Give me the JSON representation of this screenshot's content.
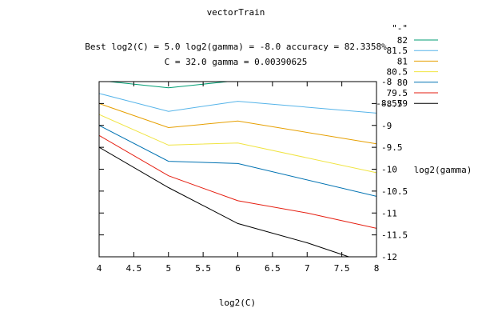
{
  "chart_data": {
    "type": "line",
    "title": "vectorTrain",
    "subtitle_line1": "Best log2(C) = 5.0  log2(gamma) = -8.0  accuracy = 82.3358%",
    "subtitle_line2": "C = 32.0  gamma = 0.00390625",
    "xlabel": "log2(C)",
    "ylabel": "log2(gamma)",
    "xlim": [
      4,
      8
    ],
    "ylim": [
      -12,
      -8
    ],
    "x_ticks": [
      "4",
      "4.5",
      "5",
      "5.5",
      "6",
      "6.5",
      "7",
      "7.5",
      "8"
    ],
    "y_ticks": [
      "-8",
      "-8.5",
      "-9",
      "-9.5",
      "-10",
      "-10.5",
      "-11",
      "-11.5",
      "-12"
    ],
    "legend_title": "\"-\"",
    "legend_position": "top-right",
    "series": [
      {
        "name": "82",
        "color": "#009e73",
        "points": [
          [
            4.15,
            -8.0
          ],
          [
            5.0,
            -8.14
          ],
          [
            5.85,
            -8.0
          ]
        ]
      },
      {
        "name": "81.5",
        "color": "#56b4e9",
        "points": [
          [
            4.0,
            -8.27
          ],
          [
            5.0,
            -8.68
          ],
          [
            6.0,
            -8.45
          ],
          [
            8.0,
            -8.72
          ]
        ]
      },
      {
        "name": "81",
        "color": "#e69f00",
        "points": [
          [
            4.0,
            -8.5
          ],
          [
            5.0,
            -9.05
          ],
          [
            6.0,
            -8.9
          ],
          [
            8.0,
            -9.42
          ]
        ]
      },
      {
        "name": "80.5",
        "color": "#f0e442",
        "points": [
          [
            4.0,
            -8.75
          ],
          [
            5.0,
            -9.45
          ],
          [
            6.0,
            -9.4
          ],
          [
            8.0,
            -10.08
          ]
        ]
      },
      {
        "name": "80",
        "color": "#0072b2",
        "points": [
          [
            4.0,
            -9.0
          ],
          [
            5.0,
            -9.82
          ],
          [
            6.0,
            -9.87
          ],
          [
            8.0,
            -10.62
          ]
        ]
      },
      {
        "name": "79.5",
        "color": "#e51e10",
        "points": [
          [
            4.0,
            -9.23
          ],
          [
            5.0,
            -10.15
          ],
          [
            6.0,
            -10.72
          ],
          [
            7.0,
            -11.0
          ],
          [
            8.0,
            -11.35
          ]
        ]
      },
      {
        "name": "-8.579",
        "color": "#000000",
        "points": [
          [
            4.0,
            -9.5
          ],
          [
            5.0,
            -10.42
          ],
          [
            6.0,
            -11.24
          ],
          [
            7.0,
            -11.68
          ],
          [
            7.6,
            -12.0
          ]
        ]
      }
    ]
  }
}
